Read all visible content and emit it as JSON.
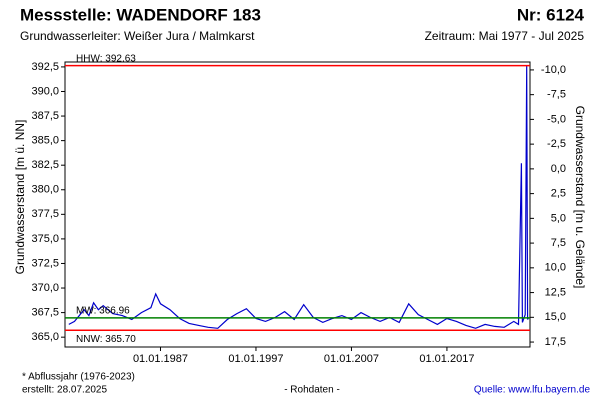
{
  "chart_data": {
    "type": "line",
    "title": "Messstelle: WADENDORF 183",
    "id_label": "Nr: 6124",
    "subtitle": "Grundwasserleiter:  Weißer Jura / Malmkarst",
    "period": "Zeitraum: Mai 1977 - Jul 2025",
    "ylabel": "Grundwasserstand [m ü. NN]",
    "y2label": "Grundwasserstand [m u. Gelände]",
    "footnote": "* Abflussjahr (1976-2023)",
    "created": "erstellt:  28.07.2025",
    "note": "- Rohdaten -",
    "source": "Quelle:  www.lfu.bayern.de",
    "xlim": [
      1977.0,
      2025.7
    ],
    "xticks": [
      {
        "value": 1987,
        "label": "01.01.1987"
      },
      {
        "value": 1997,
        "label": "01.01.1997"
      },
      {
        "value": 2007,
        "label": "01.01.2007"
      },
      {
        "value": 2017,
        "label": "01.01.2017"
      }
    ],
    "ylim": [
      364.0,
      393.0
    ],
    "yticks": [
      {
        "value": 365.0,
        "label": "365,0"
      },
      {
        "value": 367.5,
        "label": "367,5"
      },
      {
        "value": 370.0,
        "label": "370,0"
      },
      {
        "value": 372.5,
        "label": "372,5"
      },
      {
        "value": 375.0,
        "label": "375,0"
      },
      {
        "value": 377.5,
        "label": "377,5"
      },
      {
        "value": 380.0,
        "label": "380,0"
      },
      {
        "value": 382.5,
        "label": "382,5"
      },
      {
        "value": 385.0,
        "label": "385,0"
      },
      {
        "value": 387.5,
        "label": "387,5"
      },
      {
        "value": 390.0,
        "label": "390,0"
      },
      {
        "value": 392.5,
        "label": "392,5"
      }
    ],
    "y2lim": [
      18.0,
      -10.8
    ],
    "y2ticks": [
      {
        "value": -10.0,
        "label": "-10,0"
      },
      {
        "value": -7.5,
        "label": "-7,5"
      },
      {
        "value": -5.0,
        "label": "-5,0"
      },
      {
        "value": -2.5,
        "label": "-2,5"
      },
      {
        "value": 0.0,
        "label": "0,0"
      },
      {
        "value": 2.5,
        "label": "2,5"
      },
      {
        "value": 5.0,
        "label": "5,0"
      },
      {
        "value": 7.5,
        "label": "7,5"
      },
      {
        "value": 10.0,
        "label": "10,0"
      },
      {
        "value": 12.5,
        "label": "12,5"
      },
      {
        "value": 15.0,
        "label": "15,0"
      },
      {
        "value": 17.5,
        "label": "17,5"
      }
    ],
    "reference_lines": [
      {
        "label": "HHW: 392.63",
        "value": 392.63,
        "color": "#ff0000"
      },
      {
        "label": "MW: 366.96",
        "value": 366.96,
        "color": "#008000"
      },
      {
        "label": "NNW: 365.70",
        "value": 365.7,
        "color": "#ff0000"
      }
    ],
    "x": [
      1977.4,
      1978,
      1979,
      1979.5,
      1980,
      1980.5,
      1981,
      1982,
      1983,
      1984,
      1985,
      1986,
      1986.5,
      1987,
      1988,
      1989,
      1990,
      1991,
      1992,
      1993,
      1994,
      1995,
      1996,
      1997,
      1998,
      1999,
      2000,
      2001,
      2002,
      2003,
      2004,
      2005,
      2006,
      2007,
      2008,
      2009,
      2010,
      2011,
      2012,
      2013,
      2014,
      2015,
      2016,
      2017,
      2018,
      2019,
      2020,
      2021,
      2022,
      2023,
      2024,
      2024.5,
      2024.8,
      2024.9,
      2025.2,
      2025.35,
      2025.45,
      2025.55
    ],
    "series": [
      {
        "color": "#0000cc",
        "values": [
          366.3,
          366.6,
          367.8,
          367.2,
          368.5,
          367.8,
          368.2,
          367.4,
          367.2,
          366.8,
          367.5,
          368.0,
          369.4,
          368.4,
          367.8,
          366.9,
          366.4,
          366.2,
          366.0,
          365.9,
          366.8,
          367.4,
          367.9,
          366.9,
          366.6,
          367.0,
          367.6,
          366.8,
          368.3,
          367.0,
          366.5,
          366.9,
          367.2,
          366.8,
          367.5,
          367.0,
          366.6,
          367.0,
          366.5,
          368.4,
          367.3,
          366.8,
          366.3,
          366.9,
          366.6,
          366.2,
          365.9,
          366.3,
          366.1,
          366.0,
          366.6,
          366.3,
          382.7,
          366.5,
          367.3,
          392.6,
          366.8,
          367.0
        ]
      }
    ]
  }
}
